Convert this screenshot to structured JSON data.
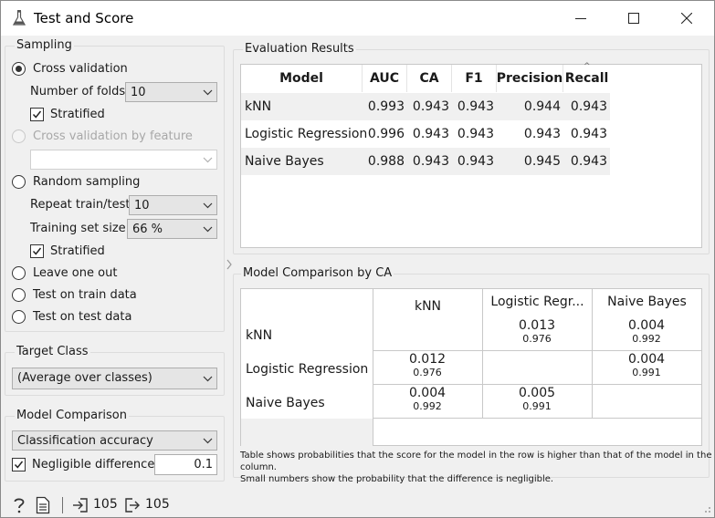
{
  "window": {
    "title": "Test and Score",
    "icons": [
      "flask-icon",
      "minimize-icon",
      "maximize-icon",
      "close-icon"
    ]
  },
  "sampling": {
    "title": "Sampling",
    "cross_validation_label": "Cross validation",
    "folds_label": "Number of folds:",
    "folds_value": "10",
    "stratified_label": "Stratified",
    "cv_by_feature_label": "Cross validation by feature",
    "cv_feature_value": "",
    "random_sampling_label": "Random sampling",
    "repeat_label": "Repeat train/test:",
    "repeat_value": "10",
    "train_size_label": "Training set size:",
    "train_size_value": "66 %",
    "stratified2_label": "Stratified",
    "leave_one_out_label": "Leave one out",
    "test_on_train_label": "Test on train data",
    "test_on_test_label": "Test on test data",
    "selected": "cross_validation"
  },
  "target_class": {
    "title": "Target Class",
    "value": "(Average over classes)"
  },
  "model_comparison": {
    "title": "Model Comparison",
    "score_value": "Classification accuracy",
    "negligible_label": "Negligible difference:",
    "negligible_value": "0.1",
    "negligible_checked": true
  },
  "evaluation": {
    "title": "Evaluation Results",
    "columns": [
      "Model",
      "AUC",
      "CA",
      "F1",
      "Precision",
      "Recall"
    ],
    "sort_indicator": "^",
    "rows": [
      {
        "model": "kNN",
        "auc": "0.993",
        "ca": "0.943",
        "f1": "0.943",
        "precision": "0.944",
        "recall": "0.943"
      },
      {
        "model": "Logistic Regression",
        "auc": "0.996",
        "ca": "0.943",
        "f1": "0.943",
        "precision": "0.943",
        "recall": "0.943"
      },
      {
        "model": "Naive Bayes",
        "auc": "0.988",
        "ca": "0.943",
        "f1": "0.943",
        "precision": "0.945",
        "recall": "0.943"
      }
    ]
  },
  "comparison": {
    "title": "Model Comparison by CA",
    "columns": [
      "kNN",
      "Logistic Regr...",
      "Naive Bayes"
    ],
    "rows": [
      {
        "label": "kNN",
        "cells": [
          null,
          {
            "p": "0.013",
            "neg": "0.976"
          },
          {
            "p": "0.004",
            "neg": "0.992"
          }
        ]
      },
      {
        "label": "Logistic Regression",
        "cells": [
          {
            "p": "0.012",
            "neg": "0.976"
          },
          null,
          {
            "p": "0.004",
            "neg": "0.991"
          }
        ]
      },
      {
        "label": "Naive Bayes",
        "cells": [
          {
            "p": "0.004",
            "neg": "0.992"
          },
          {
            "p": "0.005",
            "neg": "0.991"
          },
          null
        ]
      }
    ],
    "note_line1": "Table shows probabilities that the score for the model in the row is higher than that of the model in the column.",
    "note_line2": "Small numbers show the probability that the difference is negligible."
  },
  "status": {
    "input_count": "105",
    "output_count": "105"
  }
}
